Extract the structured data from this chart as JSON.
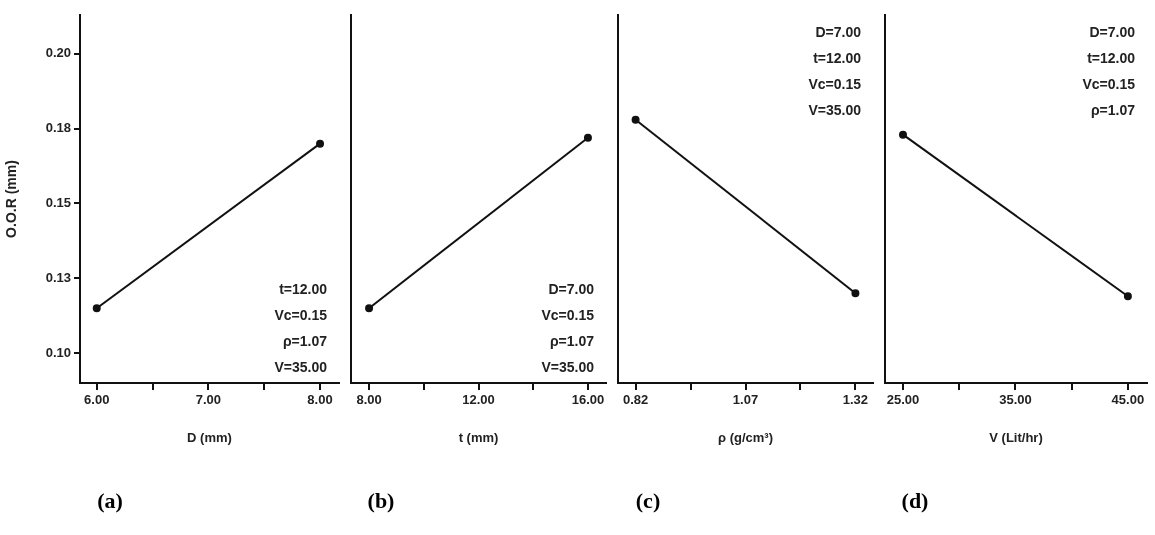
{
  "chart_data": [
    {
      "type": "line",
      "title": "(a)",
      "xlabel": "D (mm)",
      "ylabel": "O.O.R (mm)",
      "x": [
        6,
        8
      ],
      "series": [
        {
          "color": "#111111",
          "values": [
            0.115,
            0.17
          ]
        }
      ],
      "xlim": [
        5.85,
        8.17
      ],
      "xticks": [
        {
          "value": 6,
          "label": "6.00"
        },
        {
          "value": 6.5,
          "label": null
        },
        {
          "value": 7,
          "label": "7.00"
        },
        {
          "value": 7.5,
          "label": null
        },
        {
          "value": 8,
          "label": "8.00"
        }
      ],
      "ylim": [
        0.09,
        0.213
      ],
      "yticks": [
        {
          "value": 0.1,
          "label": "0.10"
        },
        {
          "value": 0.125,
          "label": "0.13"
        },
        {
          "value": 0.15,
          "label": "0.15"
        },
        {
          "value": 0.175,
          "label": "0.18"
        },
        {
          "value": 0.2,
          "label": "0.20"
        }
      ],
      "annotations": [
        "t=12.00",
        "Vc=0.15",
        "ρ=1.07",
        "V=35.00"
      ],
      "grid": false,
      "legend": false,
      "marker": "circle",
      "line_style": "solid"
    },
    {
      "type": "line",
      "title": "(b)",
      "xlabel": "t (mm)",
      "x": [
        8,
        16
      ],
      "series": [
        {
          "color": "#111111",
          "values": [
            0.115,
            0.172
          ]
        }
      ],
      "xlim": [
        7.34,
        16.66
      ],
      "xticks": [
        {
          "value": 8,
          "label": "8.00"
        },
        {
          "value": 10,
          "label": null
        },
        {
          "value": 12,
          "label": "12.00"
        },
        {
          "value": 14,
          "label": null
        },
        {
          "value": 16,
          "label": "16.00"
        }
      ],
      "ylim": [
        0.09,
        0.213
      ],
      "tick_labels": "x",
      "annotations": [
        "D=7.00",
        "Vc=0.15",
        "ρ=1.07",
        "V=35.00"
      ],
      "grid": false,
      "legend": false,
      "marker": "circle",
      "line_style": "solid"
    },
    {
      "type": "line",
      "title": "(c)",
      "xlabel": "ρ (g/cm³)",
      "x": [
        0.82,
        1.32
      ],
      "series": [
        {
          "color": "#111111",
          "values": [
            0.178,
            0.12
          ]
        }
      ],
      "xlim": [
        0.78,
        1.36
      ],
      "xticks": [
        {
          "value": 0.82,
          "label": "0.82"
        },
        {
          "value": 0.945,
          "label": null
        },
        {
          "value": 1.07,
          "label": "1.07"
        },
        {
          "value": 1.195,
          "label": null
        },
        {
          "value": 1.32,
          "label": "1.32"
        }
      ],
      "ylim": [
        0.09,
        0.213
      ],
      "tick_labels": "x",
      "annotations": [
        "D=7.00",
        "t=12.00",
        "Vc=0.15",
        "V=35.00"
      ],
      "grid": false,
      "legend": false,
      "marker": "circle",
      "line_style": "solid"
    },
    {
      "type": "line",
      "title": "(d)",
      "xlabel": "V (Lit/hr)",
      "x": [
        25,
        45
      ],
      "series": [
        {
          "color": "#111111",
          "values": [
            0.173,
            0.119
          ]
        }
      ],
      "xlim": [
        23.4,
        46.7
      ],
      "xticks": [
        {
          "value": 25,
          "label": "25.00"
        },
        {
          "value": 30,
          "label": null
        },
        {
          "value": 35,
          "label": "35.00"
        },
        {
          "value": 40,
          "label": null
        },
        {
          "value": 45,
          "label": "45.00"
        }
      ],
      "ylim": [
        0.09,
        0.213
      ],
      "tick_labels": "x",
      "annotations": [
        "D=7.00",
        "t=12.00",
        "Vc=0.15",
        "ρ=1.07"
      ],
      "grid": false,
      "legend": false,
      "marker": "circle",
      "line_style": "solid"
    }
  ]
}
